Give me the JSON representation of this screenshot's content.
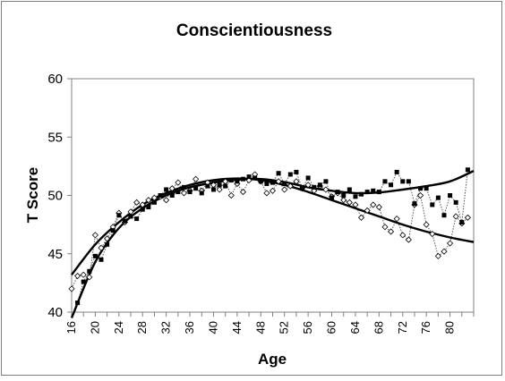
{
  "chart_data": {
    "type": "line",
    "title": "Conscientiousness",
    "xlabel": "Age",
    "ylabel": "T Score",
    "xlim": [
      16,
      84
    ],
    "ylim": [
      40,
      60
    ],
    "y_ticks": [
      40,
      45,
      50,
      55,
      60
    ],
    "x_ticks": [
      16,
      20,
      24,
      28,
      32,
      36,
      40,
      44,
      48,
      52,
      56,
      60,
      64,
      68,
      72,
      76,
      80
    ],
    "grid": false,
    "legend": "none",
    "series": [
      {
        "style": "filled squares, dotted line",
        "x": [
          17,
          18,
          19,
          20,
          21,
          22,
          23,
          24,
          25,
          26,
          27,
          28,
          29,
          30,
          31,
          32,
          33,
          34,
          35,
          36,
          37,
          38,
          39,
          40,
          41,
          42,
          43,
          44,
          45,
          46,
          47,
          48,
          49,
          50,
          51,
          52,
          53,
          54,
          55,
          56,
          57,
          58,
          59,
          60,
          61,
          62,
          63,
          64,
          65,
          66,
          67,
          68,
          69,
          70,
          71,
          72,
          73,
          74,
          75,
          76,
          77,
          78,
          79,
          80,
          81,
          82,
          83
        ],
        "values": [
          40.8,
          42.6,
          43.5,
          44.8,
          44.5,
          45.8,
          47.0,
          48.3,
          47.8,
          48.2,
          48.0,
          48.8,
          49.0,
          49.4,
          50.0,
          50.5,
          50.0,
          50.3,
          50.7,
          50.3,
          50.6,
          50.2,
          50.8,
          50.5,
          50.9,
          50.8,
          51.3,
          51.2,
          51.4,
          51.6,
          51.5,
          51.2,
          51.0,
          51.1,
          51.9,
          51.0,
          51.8,
          52.0,
          50.6,
          51.5,
          50.7,
          50.9,
          51.2,
          49.8,
          50.3,
          50.0,
          50.5,
          49.9,
          50.1,
          50.3,
          50.4,
          50.3,
          51.2,
          50.9,
          52.0,
          51.2,
          51.2,
          49.3,
          50.6,
          50.6,
          49.2,
          49.8,
          48.3,
          50.0,
          49.4,
          47.7,
          52.2
        ],
        "color": "#000000"
      },
      {
        "style": "open diamonds, dotted line",
        "x": [
          16,
          17,
          18,
          19,
          20,
          21,
          22,
          23,
          24,
          25,
          26,
          27,
          28,
          29,
          30,
          31,
          32,
          33,
          34,
          35,
          36,
          37,
          38,
          39,
          40,
          41,
          42,
          43,
          44,
          45,
          46,
          47,
          48,
          49,
          50,
          51,
          52,
          53,
          54,
          55,
          56,
          57,
          58,
          59,
          60,
          61,
          62,
          63,
          64,
          65,
          66,
          67,
          68,
          69,
          70,
          71,
          72,
          73,
          74,
          75,
          76,
          77,
          78,
          79,
          80,
          81,
          82,
          83
        ],
        "values": [
          42.0,
          43.1,
          43.2,
          43.0,
          46.6,
          45.5,
          46.3,
          47.3,
          48.5,
          47.7,
          48.6,
          49.4,
          49.2,
          49.6,
          49.8,
          49.9,
          49.6,
          50.6,
          51.1,
          50.2,
          50.4,
          51.4,
          50.4,
          51.1,
          50.9,
          50.5,
          51.2,
          50.0,
          51.0,
          50.3,
          51.3,
          51.8,
          51.2,
          50.2,
          50.4,
          51.2,
          50.5,
          50.8,
          51.2,
          50.6,
          50.9,
          50.4,
          50.8,
          50.5,
          49.9,
          50.2,
          49.6,
          49.4,
          49.2,
          48.1,
          48.7,
          49.2,
          49.0,
          47.3,
          46.9,
          48.0,
          46.6,
          46.2,
          49.2,
          50.0,
          47.5,
          46.7,
          44.8,
          45.2,
          45.9,
          48.2,
          47.6,
          48.1
        ],
        "color": "#000000"
      },
      {
        "style": "thick solid smooth trend (filled-square series)",
        "x": [
          16,
          20,
          24,
          28,
          32,
          36,
          40,
          44,
          48,
          52,
          56,
          60,
          64,
          68,
          72,
          76,
          80,
          84
        ],
        "values": [
          39.5,
          44.3,
          47.2,
          48.9,
          50.0,
          50.7,
          51.1,
          51.35,
          51.4,
          51.15,
          50.7,
          50.4,
          50.2,
          50.25,
          50.5,
          50.8,
          51.2,
          52.1
        ],
        "color": "#000000"
      },
      {
        "style": "thick solid smooth trend (open-diamond series)",
        "x": [
          16,
          20,
          24,
          28,
          32,
          36,
          40,
          44,
          48,
          52,
          56,
          60,
          64,
          68,
          72,
          76,
          80,
          84
        ],
        "values": [
          43.2,
          45.8,
          47.7,
          49.2,
          50.2,
          50.9,
          51.3,
          51.45,
          51.3,
          50.9,
          50.3,
          49.6,
          48.9,
          48.2,
          47.5,
          46.9,
          46.4,
          46.0
        ],
        "color": "#000000"
      }
    ]
  }
}
